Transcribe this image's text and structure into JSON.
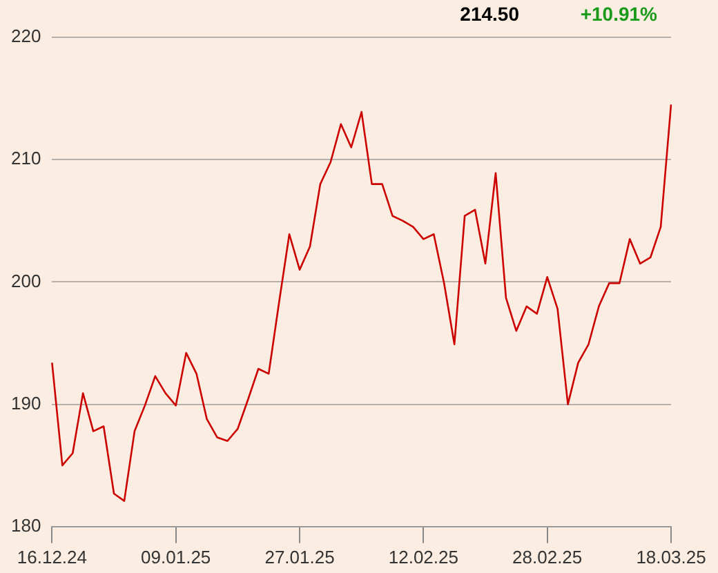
{
  "chart_data": {
    "type": "line",
    "annotations": [
      "214.50",
      "+10.91%"
    ],
    "categories": [
      "16.12.24",
      null,
      null,
      null,
      null,
      null,
      null,
      null,
      null,
      null,
      null,
      null,
      "09.01.25",
      null,
      null,
      null,
      null,
      null,
      null,
      null,
      null,
      null,
      null,
      null,
      "27.01.25",
      null,
      null,
      null,
      null,
      null,
      null,
      null,
      null,
      null,
      null,
      null,
      "12.02.25",
      null,
      null,
      null,
      null,
      null,
      null,
      null,
      null,
      null,
      null,
      null,
      "28.02.25",
      null,
      null,
      null,
      null,
      null,
      null,
      null,
      null,
      null,
      null,
      null,
      "18.03.25"
    ],
    "series": [
      {
        "color": "#cc0000",
        "values": [
          193.4,
          185.0,
          186.0,
          190.9,
          187.8,
          188.2,
          182.7,
          182.1,
          187.8,
          189.9,
          192.3,
          190.9,
          189.9,
          194.2,
          192.5,
          188.8,
          187.3,
          187.0,
          188.0,
          190.4,
          192.9,
          192.5,
          198.3,
          203.9,
          201.0,
          202.9,
          208.0,
          209.8,
          212.9,
          211.0,
          213.9,
          208.0,
          208.0,
          205.4,
          205.0,
          204.5,
          203.5,
          203.9,
          199.9,
          194.9,
          205.4,
          205.9,
          201.5,
          208.9,
          198.7,
          196.0,
          198.0,
          197.4,
          200.4,
          197.8,
          190.0,
          193.4,
          194.9,
          198.0,
          199.9,
          199.9,
          203.5,
          201.5,
          202.0,
          204.5,
          214.5
        ]
      }
    ],
    "ylim": [
      180,
      220
    ],
    "yticks": [
      180,
      190,
      200,
      210,
      220
    ],
    "grid": "y",
    "legend": false,
    "marker": "none",
    "line_style": "solid"
  }
}
